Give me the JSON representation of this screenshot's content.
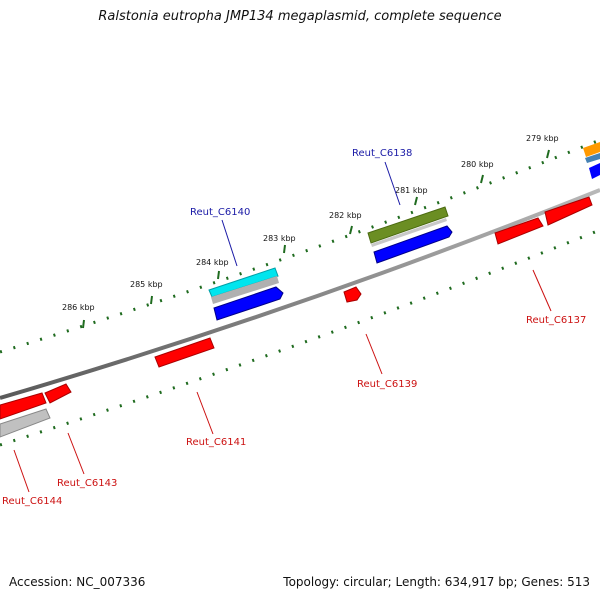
{
  "title": "Ralstonia eutropha JMP134 megaplasmid, complete sequence",
  "accession": "Accession: NC_007336",
  "topology": "Topology: circular; Length: 634,917 bp; Genes: 513",
  "scale": {
    "unit": "kbp",
    "ticks": [
      {
        "label": "286 kbp"
      },
      {
        "label": "285 kbp"
      },
      {
        "label": "284 kbp"
      },
      {
        "label": "283 kbp"
      },
      {
        "label": "282 kbp"
      },
      {
        "label": "281 kbp"
      },
      {
        "label": "280 kbp"
      },
      {
        "label": "279 kbp"
      }
    ]
  },
  "genes": [
    {
      "name": "Reut_C6138",
      "color": "#1a1aa6"
    },
    {
      "name": "Reut_C6140",
      "color": "#1a1aa6"
    },
    {
      "name": "Reut_C6137",
      "color": "#cc1111"
    },
    {
      "name": "Reut_C6139",
      "color": "#cc1111"
    },
    {
      "name": "Reut_C6141",
      "color": "#cc1111"
    },
    {
      "name": "Reut_C6143",
      "color": "#cc1111"
    },
    {
      "name": "Reut_C6144",
      "color": "#cc1111"
    }
  ],
  "colors": {
    "backbone": "#808080",
    "tick": "#1f6b1f",
    "cds": "#ff0000",
    "rna": "#0000ff",
    "other": "#6b8e23",
    "cyan": "#00e5ee",
    "gray": "#b0b0b0",
    "orange": "#ff9900",
    "steel": "#4682b4"
  }
}
